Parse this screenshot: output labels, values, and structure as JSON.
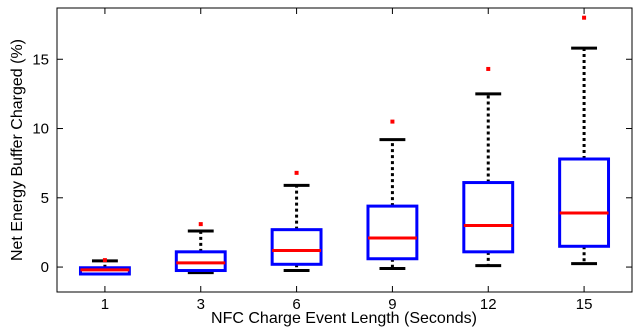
{
  "chart_data": {
    "type": "box",
    "title": "",
    "xlabel": "NFC Charge Event Length (Seconds)",
    "ylabel": "Net Energy Buffer Charged (%)",
    "ylim": [
      -1.8,
      18.7
    ],
    "yticks": [
      0,
      5,
      10,
      15
    ],
    "grid": false,
    "legend": "none",
    "categories": [
      "1",
      "3",
      "6",
      "9",
      "12",
      "15"
    ],
    "boxes": [
      {
        "category": "1",
        "whisker_low": -0.5,
        "q1": -0.5,
        "median": -0.2,
        "q3": -0.05,
        "whisker_high": 0.45,
        "outliers": [
          0.5
        ]
      },
      {
        "category": "3",
        "whisker_low": -0.4,
        "q1": -0.25,
        "median": 0.3,
        "q3": 1.1,
        "whisker_high": 2.6,
        "outliers": [
          3.1
        ]
      },
      {
        "category": "6",
        "whisker_low": -0.25,
        "q1": 0.2,
        "median": 1.2,
        "q3": 2.7,
        "whisker_high": 5.9,
        "outliers": [
          6.8
        ]
      },
      {
        "category": "9",
        "whisker_low": -0.1,
        "q1": 0.6,
        "median": 2.1,
        "q3": 4.4,
        "whisker_high": 9.2,
        "outliers": [
          10.5
        ]
      },
      {
        "category": "12",
        "whisker_low": 0.1,
        "q1": 1.1,
        "median": 3.0,
        "q3": 6.1,
        "whisker_high": 12.5,
        "outliers": [
          14.3
        ]
      },
      {
        "category": "15",
        "whisker_low": 0.25,
        "q1": 1.5,
        "median": 3.9,
        "q3": 7.8,
        "whisker_high": 15.8,
        "outliers": [
          18.0
        ]
      }
    ],
    "colors": {
      "box": "#0000ff",
      "median": "#ff0000",
      "whisker": "#000000",
      "outlier": "#ff0000",
      "axes": "#000000"
    }
  }
}
